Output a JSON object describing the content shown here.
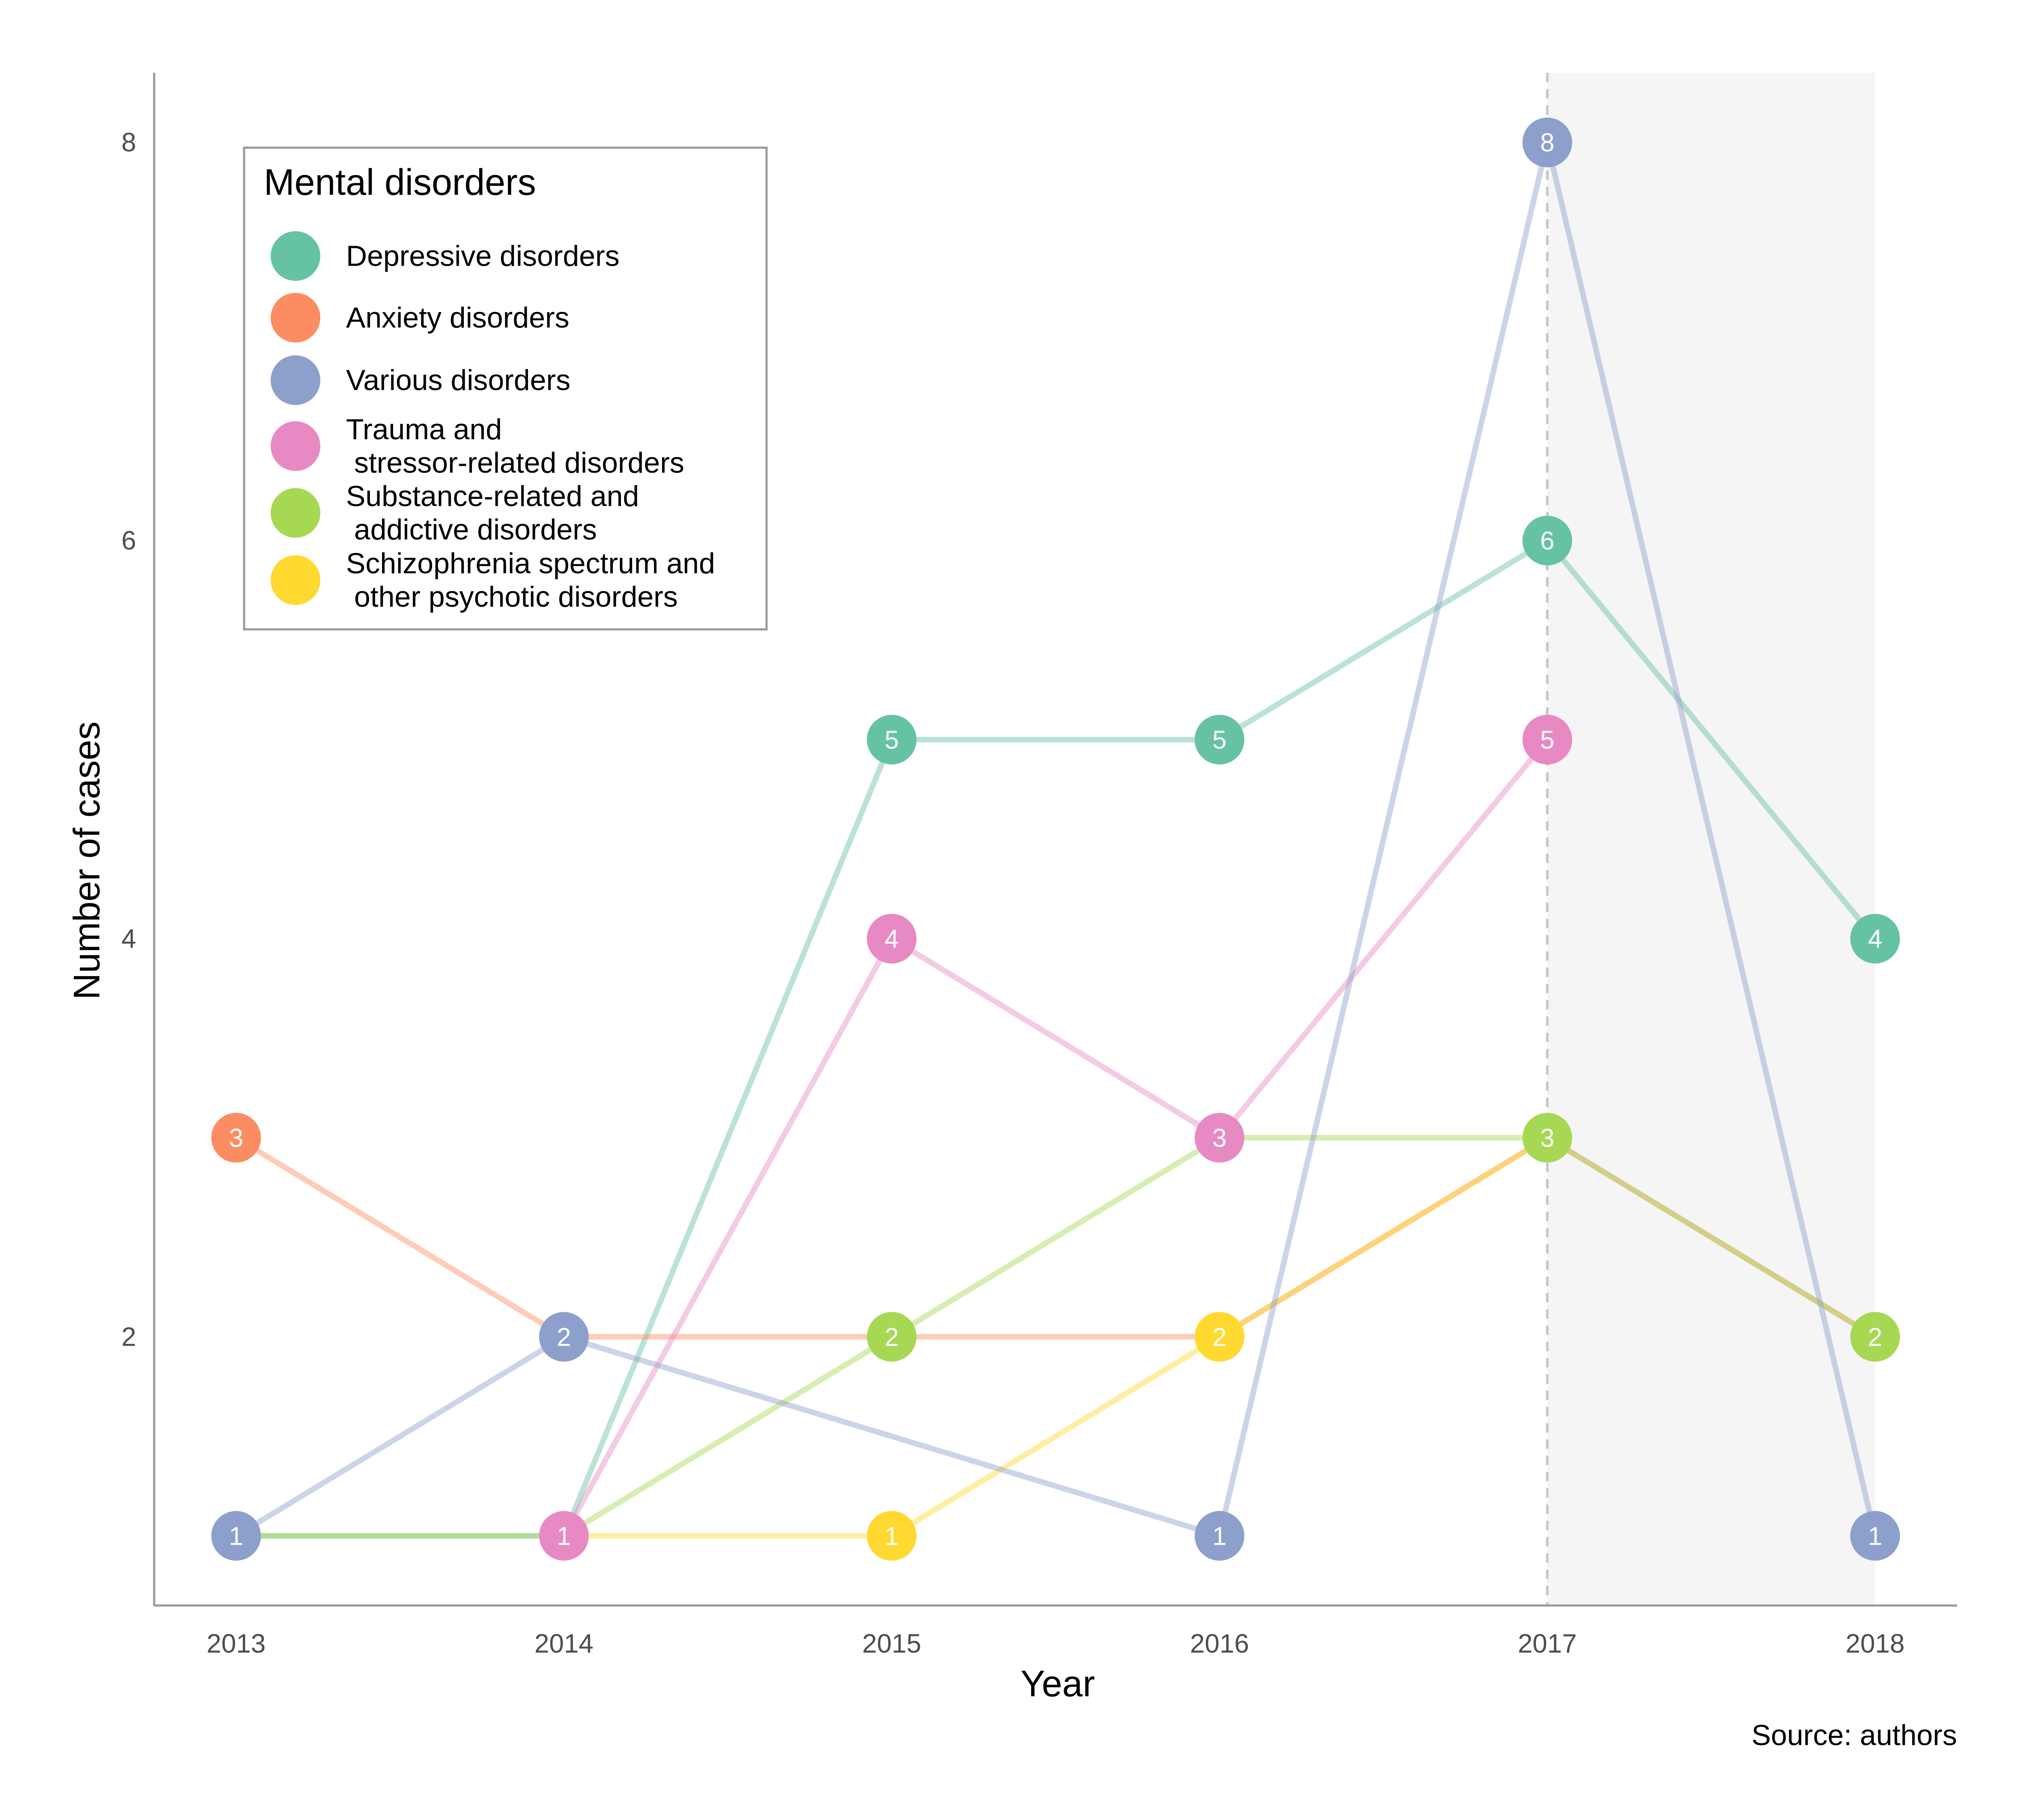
{
  "chart_data": {
    "type": "line",
    "xlabel": "Year",
    "ylabel": "Number of cases",
    "caption": "Source: authors",
    "x": [
      2013,
      2014,
      2015,
      2016,
      2017,
      2018
    ],
    "y_ticks": [
      2,
      4,
      6,
      8
    ],
    "ylim": [
      0.65,
      8.35
    ],
    "xlim": [
      2012.75,
      2018.25
    ],
    "grid": false,
    "highlight_region": {
      "from": 2017,
      "to": 2018,
      "color": "#f5f5f5"
    },
    "reference_line": {
      "x": 2017,
      "style": "dashed",
      "color": "#c8c8c8"
    },
    "legend": {
      "title": "Mental disorders",
      "position": "top-left",
      "items": [
        {
          "lines": [
            "Depressive disorders"
          ],
          "color": "#66c2a5"
        },
        {
          "lines": [
            "Anxiety disorders"
          ],
          "color": "#fc8d62"
        },
        {
          "lines": [
            "Various disorders"
          ],
          "color": "#8da0cb"
        },
        {
          "lines": [
            "Trauma and",
            " stressor-related disorders"
          ],
          "color": "#e78ac3"
        },
        {
          "lines": [
            "Substance-related and",
            " addictive disorders"
          ],
          "color": "#a6d854"
        },
        {
          "lines": [
            "Schizophrenia spectrum and",
            " other psychotic disorders"
          ],
          "color": "#ffd92f"
        }
      ]
    },
    "series": [
      {
        "name": "Depressive disorders",
        "color": "#66c2a5",
        "points": [
          [
            2013,
            1
          ],
          [
            2014,
            1
          ],
          [
            2015,
            5
          ],
          [
            2016,
            5
          ],
          [
            2017,
            6
          ],
          [
            2018,
            4
          ]
        ],
        "labeled": [
          2015,
          2016,
          2017,
          2018
        ]
      },
      {
        "name": "Anxiety disorders",
        "color": "#fc8d62",
        "points": [
          [
            2013,
            3
          ],
          [
            2014,
            2
          ],
          [
            2015,
            2
          ],
          [
            2016,
            2
          ],
          [
            2017,
            3
          ],
          [
            2018,
            2
          ]
        ],
        "labeled": [
          2013
        ]
      },
      {
        "name": "Trauma and stressor-related disorders",
        "color": "#e78ac3",
        "points": [
          [
            2014,
            1
          ],
          [
            2015,
            4
          ],
          [
            2016,
            3
          ],
          [
            2017,
            5
          ]
        ],
        "labeled": [
          2014,
          2015,
          2016,
          2017
        ]
      },
      {
        "name": "Substance-related and addictive disorders",
        "color": "#a6d854",
        "points": [
          [
            2013,
            1
          ],
          [
            2014,
            1
          ],
          [
            2015,
            2
          ],
          [
            2016,
            3
          ],
          [
            2017,
            3
          ],
          [
            2018,
            2
          ]
        ],
        "labeled": [
          2015,
          2017,
          2018
        ]
      },
      {
        "name": "Schizophrenia spectrum and other psychotic disorders",
        "color": "#ffd92f",
        "points": [
          [
            2014,
            1
          ],
          [
            2015,
            1
          ],
          [
            2016,
            2
          ],
          [
            2017,
            3
          ]
        ],
        "labeled": [
          2015,
          2016
        ]
      },
      {
        "name": "Various disorders",
        "color": "#8da0cb",
        "points": [
          [
            2013,
            1
          ],
          [
            2014,
            2
          ],
          [
            2016,
            1
          ],
          [
            2017,
            8
          ],
          [
            2018,
            1
          ]
        ],
        "labeled": [
          2013,
          2014,
          2016,
          2017,
          2018
        ]
      }
    ]
  }
}
